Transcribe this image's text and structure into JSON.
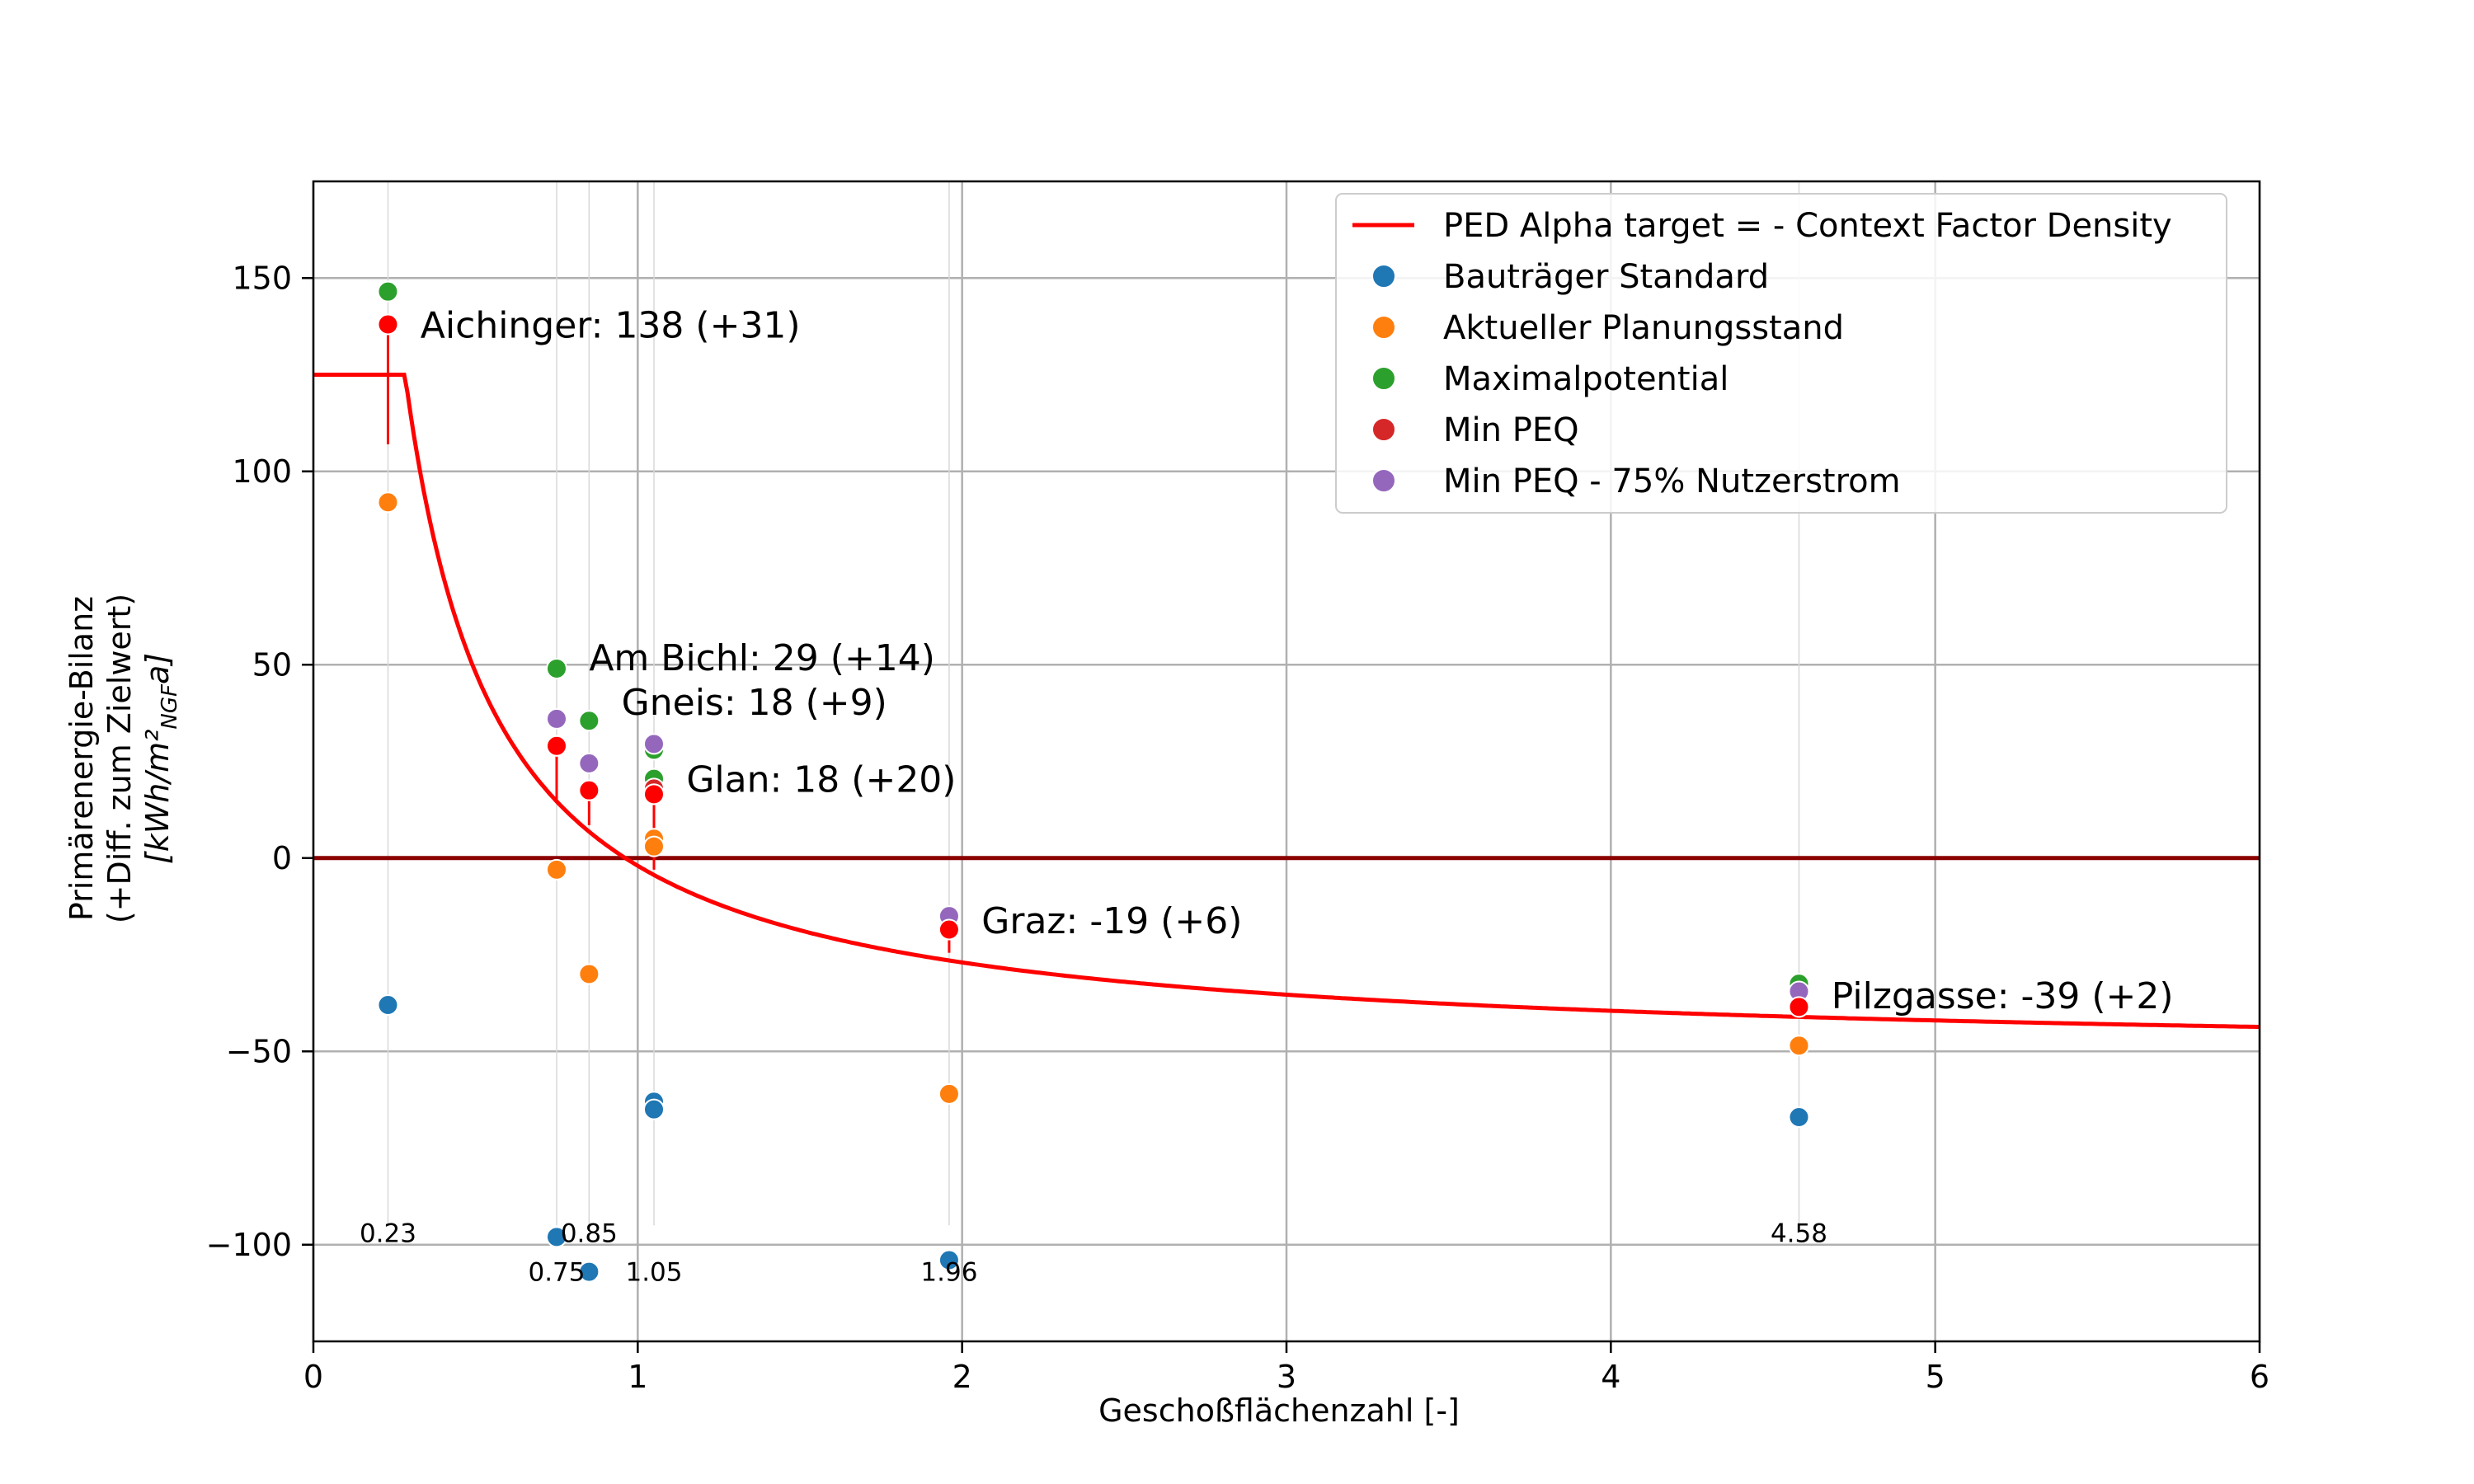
{
  "chart_data": {
    "type": "scatter",
    "xlabel": "Geschoßflächenzahl [-]",
    "ylabel_lines": [
      "Primärenergie-Bilanz",
      "(+Diff. zum Zielwert)"
    ],
    "ylabel_unit": "[kWh/m²",
    "ylabel_unit_sub": "NGF",
    "ylabel_unit_end": "a]",
    "xlim": [
      0,
      6
    ],
    "ylim": [
      -125,
      175
    ],
    "xticks": [
      0,
      1,
      2,
      3,
      4,
      5,
      6
    ],
    "yticks": [
      -100,
      -50,
      0,
      50,
      100,
      150
    ],
    "grid": true,
    "legend_position": "top-right",
    "target_line": {
      "name": "PED Alpha target = - Context Factor Density",
      "color": "#ff0000",
      "plateau": 125,
      "plateau_until": 0.18,
      "formula_note": "y = 50/x - 52"
    },
    "zero_line_color": "#8b0000",
    "series": [
      {
        "name": "Bauträger Standard",
        "color": "#1f77b4",
        "points": [
          [
            0.23,
            -38
          ],
          [
            0.75,
            -98
          ],
          [
            0.85,
            -107
          ],
          [
            1.05,
            -63
          ],
          [
            1.05,
            -65
          ],
          [
            1.96,
            -104
          ],
          [
            4.58,
            -67
          ]
        ]
      },
      {
        "name": "Aktueller Planungsstand",
        "color": "#ff7f0e",
        "points": [
          [
            0.23,
            92
          ],
          [
            0.75,
            -3
          ],
          [
            0.85,
            -30
          ],
          [
            1.05,
            5
          ],
          [
            1.05,
            3
          ],
          [
            1.96,
            -61
          ],
          [
            4.58,
            -48.5
          ]
        ]
      },
      {
        "name": "Maximalpotential",
        "color": "#2ca02c",
        "points": [
          [
            0.23,
            146.5
          ],
          [
            0.75,
            49
          ],
          [
            0.85,
            35.5
          ],
          [
            1.05,
            28
          ],
          [
            1.05,
            20.5
          ],
          [
            1.96,
            -16
          ],
          [
            4.58,
            -32.5
          ]
        ]
      },
      {
        "name": "Min PEQ",
        "color": "#d62728",
        "points": [
          [
            0.23,
            138
          ],
          [
            0.75,
            29
          ],
          [
            0.85,
            17.5
          ],
          [
            1.05,
            18
          ],
          [
            1.05,
            16.5
          ],
          [
            1.96,
            -18.5
          ],
          [
            4.58,
            -38.5
          ]
        ]
      },
      {
        "name": "Min PEQ - 75% Nutzerstrom",
        "color": "#9467bd",
        "points": [
          [
            0.75,
            36
          ],
          [
            0.85,
            24.5
          ],
          [
            1.05,
            29.5
          ],
          [
            1.96,
            -15
          ],
          [
            4.58,
            -34.5
          ]
        ]
      }
    ],
    "highlight_points": {
      "color": "#ff0000",
      "points": [
        [
          0.23,
          138
        ],
        [
          0.75,
          29
        ],
        [
          0.85,
          17.5
        ],
        [
          1.05,
          16.5
        ],
        [
          1.96,
          -18.5
        ],
        [
          4.58,
          -38.5
        ]
      ]
    },
    "stems": [
      {
        "x": 0.23,
        "from": 138,
        "to": 107
      },
      {
        "x": 0.75,
        "from": 29,
        "to": 15
      },
      {
        "x": 0.85,
        "from": 17.5,
        "to": 8.5
      },
      {
        "x": 1.05,
        "from": 16.5,
        "to": -3
      },
      {
        "x": 1.96,
        "from": -18.5,
        "to": -24.5
      },
      {
        "x": 4.58,
        "from": -38.5,
        "to": -41
      }
    ],
    "vlines_x": [
      0.23,
      0.75,
      0.85,
      1.05,
      1.96,
      4.58
    ],
    "annotations": [
      {
        "text": "Aichinger: 138 (+31)",
        "x": 0.33,
        "y": 138
      },
      {
        "text": "Am Bichl: 29 (+14)",
        "x": 0.85,
        "y": 52
      },
      {
        "text": "Gneis: 18 (+9)",
        "x": 0.95,
        "y": 40.5
      },
      {
        "text": "Glan: 18 (+20)",
        "x": 1.15,
        "y": 20.5
      },
      {
        "text": "Graz: -19 (+6)",
        "x": 2.06,
        "y": -16
      },
      {
        "text": "Pilzgasse: -39 (+2)",
        "x": 4.68,
        "y": -35.5
      }
    ],
    "x_value_labels": [
      {
        "text": "0.23",
        "x": 0.23,
        "y": -97
      },
      {
        "text": "0.75",
        "x": 0.75,
        "y": -107
      },
      {
        "text": "0.85",
        "x": 0.85,
        "y": -97
      },
      {
        "text": "1.05",
        "x": 1.05,
        "y": -107
      },
      {
        "text": "1.96",
        "x": 1.96,
        "y": -107
      },
      {
        "text": "4.58",
        "x": 4.58,
        "y": -97
      }
    ]
  }
}
